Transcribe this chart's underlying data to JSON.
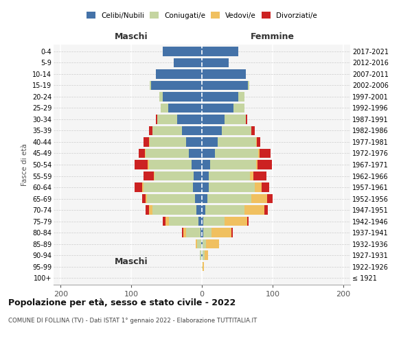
{
  "age_groups": [
    "100+",
    "95-99",
    "90-94",
    "85-89",
    "80-84",
    "75-79",
    "70-74",
    "65-69",
    "60-64",
    "55-59",
    "50-54",
    "45-49",
    "40-44",
    "35-39",
    "30-34",
    "25-29",
    "20-24",
    "15-19",
    "10-14",
    "5-9",
    "0-4"
  ],
  "birth_years": [
    "≤ 1921",
    "1922-1926",
    "1927-1931",
    "1932-1936",
    "1937-1941",
    "1942-1946",
    "1947-1951",
    "1952-1956",
    "1957-1961",
    "1962-1966",
    "1967-1971",
    "1972-1976",
    "1977-1981",
    "1982-1986",
    "1987-1991",
    "1992-1996",
    "1997-2001",
    "2002-2006",
    "2007-2011",
    "2012-2016",
    "2017-2021"
  ],
  "males": {
    "celibi": [
      0,
      0,
      1,
      1,
      2,
      5,
      8,
      10,
      13,
      12,
      15,
      18,
      22,
      28,
      35,
      48,
      55,
      72,
      65,
      40,
      55
    ],
    "coniugati": [
      0,
      0,
      2,
      6,
      20,
      42,
      62,
      68,
      70,
      55,
      60,
      62,
      52,
      42,
      28,
      10,
      5,
      2,
      0,
      0,
      0
    ],
    "vedovi": [
      0,
      0,
      0,
      2,
      4,
      5,
      5,
      2,
      2,
      1,
      2,
      1,
      1,
      0,
      0,
      0,
      0,
      0,
      0,
      0,
      0
    ],
    "divorziati": [
      0,
      0,
      0,
      0,
      2,
      3,
      5,
      5,
      10,
      15,
      18,
      8,
      8,
      5,
      2,
      0,
      0,
      0,
      0,
      0,
      0
    ]
  },
  "females": {
    "nubili": [
      0,
      0,
      1,
      1,
      2,
      2,
      5,
      8,
      10,
      10,
      12,
      18,
      22,
      28,
      32,
      45,
      52,
      65,
      62,
      38,
      52
    ],
    "coniugate": [
      0,
      1,
      3,
      5,
      12,
      30,
      55,
      62,
      65,
      58,
      65,
      62,
      55,
      42,
      30,
      15,
      8,
      2,
      0,
      0,
      0
    ],
    "vedove": [
      0,
      2,
      5,
      18,
      28,
      32,
      28,
      22,
      10,
      5,
      2,
      2,
      1,
      0,
      0,
      0,
      0,
      0,
      0,
      0,
      0
    ],
    "divorziate": [
      0,
      0,
      0,
      0,
      2,
      2,
      5,
      8,
      10,
      18,
      20,
      15,
      5,
      5,
      2,
      0,
      0,
      0,
      0,
      0,
      0
    ]
  },
  "colors": {
    "celibi": "#4472a8",
    "coniugati": "#c5d5a0",
    "vedovi": "#f0c060",
    "divorziati": "#cc2222"
  },
  "xlim": [
    -210,
    210
  ],
  "xticks": [
    -200,
    -100,
    0,
    100,
    200
  ],
  "xticklabels": [
    "200",
    "100",
    "0",
    "100",
    "200"
  ],
  "title": "Popolazione per età, sesso e stato civile - 2022",
  "subtitle": "COMUNE DI FOLLINA (TV) - Dati ISTAT 1° gennaio 2022 - Elaborazione TUTTITALIA.IT",
  "ylabel": "Fasce di età",
  "maschi_label": "Maschi",
  "femmine_label": "Femmine",
  "legend_labels": [
    "Celibi/Nubili",
    "Coniugati/e",
    "Vedovi/e",
    "Divorziati/e"
  ]
}
